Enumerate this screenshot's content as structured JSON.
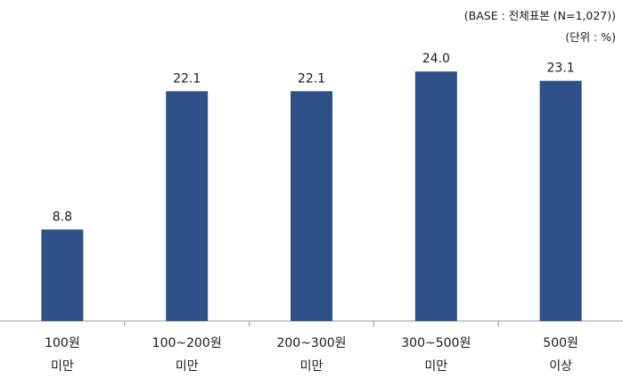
{
  "notes": {
    "base": "(BASE : 전체표본  (N=1,027))",
    "unit": "(단위 : %)"
  },
  "colors": {
    "bar": "#2e5189",
    "axis": "#999999"
  },
  "chart_data": {
    "type": "bar",
    "categories": [
      [
        "100원",
        "미만"
      ],
      [
        "100~200원",
        "미만"
      ],
      [
        "200~300원",
        "미만"
      ],
      [
        "300~500원",
        "미만"
      ],
      [
        "500원",
        "이상"
      ]
    ],
    "values": [
      8.8,
      22.1,
      22.1,
      24.0,
      23.1
    ],
    "value_labels": [
      "8.8",
      "22.1",
      "22.1",
      "24.0",
      "23.1"
    ],
    "ylim": [
      0,
      28
    ],
    "grid": false,
    "legend": "none"
  }
}
